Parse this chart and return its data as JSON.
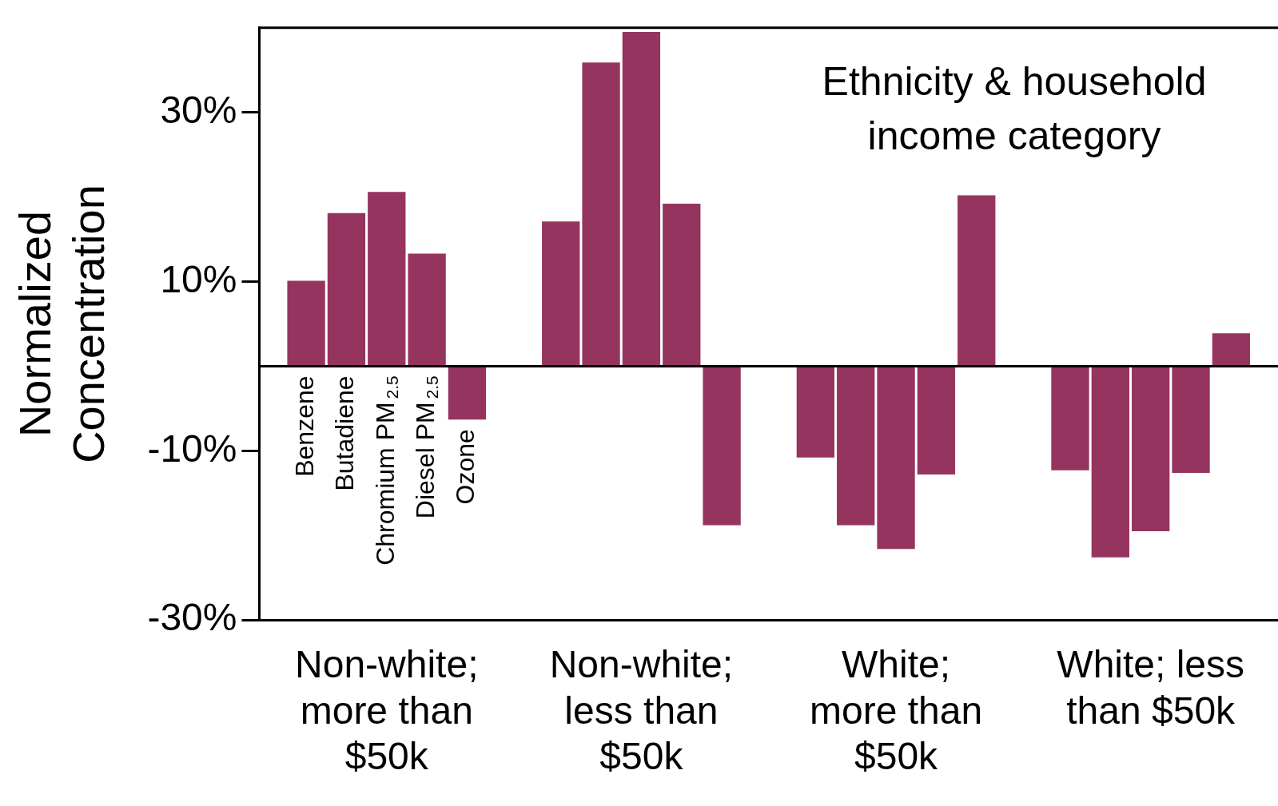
{
  "chart_data": {
    "type": "bar",
    "ylabel": "Normalized Concentration",
    "annotations": [
      "Ethnicity & household income category"
    ],
    "categories": [
      "Non-white; more than $50k",
      "Non-white; less than $50k",
      "White; more than $50k",
      "White; less than $50k"
    ],
    "ylim": [
      -30,
      40
    ],
    "yticks": [
      {
        "value": 30,
        "label": "30%"
      },
      {
        "value": 10,
        "label": "10%"
      },
      {
        "value": -10,
        "label": "-10%"
      },
      {
        "value": -30,
        "label": "-30%"
      }
    ],
    "grid": false,
    "legend": "bottom left",
    "series": [
      {
        "name": "Benzene",
        "color": "#963460",
        "values": [
          10.1,
          17.1,
          -10.8,
          -12.3
        ]
      },
      {
        "name": "Butadiene",
        "color": "#963460",
        "values": [
          18.1,
          35.9,
          -18.8,
          -22.6
        ]
      },
      {
        "name": "Chromium PM$_{2.5}$",
        "color": "#963460",
        "values": [
          20.6,
          39.5,
          -21.6,
          -19.5
        ]
      },
      {
        "name": "Diesel PM$_{2.5}$",
        "color": "#963460",
        "values": [
          13.3,
          19.2,
          -12.8,
          -12.6
        ]
      },
      {
        "name": "Ozone",
        "color": "#963460",
        "values": [
          -6.3,
          -18.8,
          20.2,
          3.9
        ]
      }
    ]
  }
}
